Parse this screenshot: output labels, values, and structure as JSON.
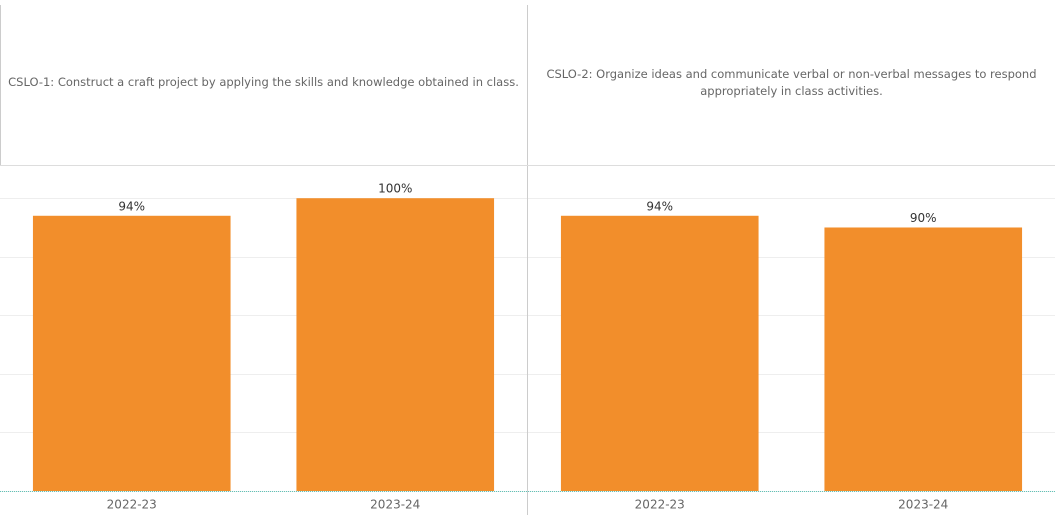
{
  "chart_data": [
    {
      "type": "bar",
      "title": "CSLO-1: Construct a craft project by applying the skills and knowledge obtained in class.",
      "categories": [
        "2022-23",
        "2023-24"
      ],
      "values": [
        94,
        100
      ],
      "value_labels": [
        "94%",
        "100%"
      ],
      "color": "#f28e2b",
      "ylim": [
        0,
        111
      ],
      "yticks": [
        0,
        20,
        40,
        60,
        80,
        100
      ],
      "grid": true
    },
    {
      "type": "bar",
      "title": "CSLO-2: Organize ideas and communicate verbal or non-verbal messages to respond appropriately in class activities.",
      "categories": [
        "2022-23",
        "2023-24"
      ],
      "values": [
        94,
        90
      ],
      "value_labels": [
        "94%",
        "90%"
      ],
      "color": "#f28e2b",
      "ylim": [
        0,
        111
      ],
      "yticks": [
        0,
        20,
        40,
        60,
        80,
        100
      ],
      "grid": true
    }
  ]
}
